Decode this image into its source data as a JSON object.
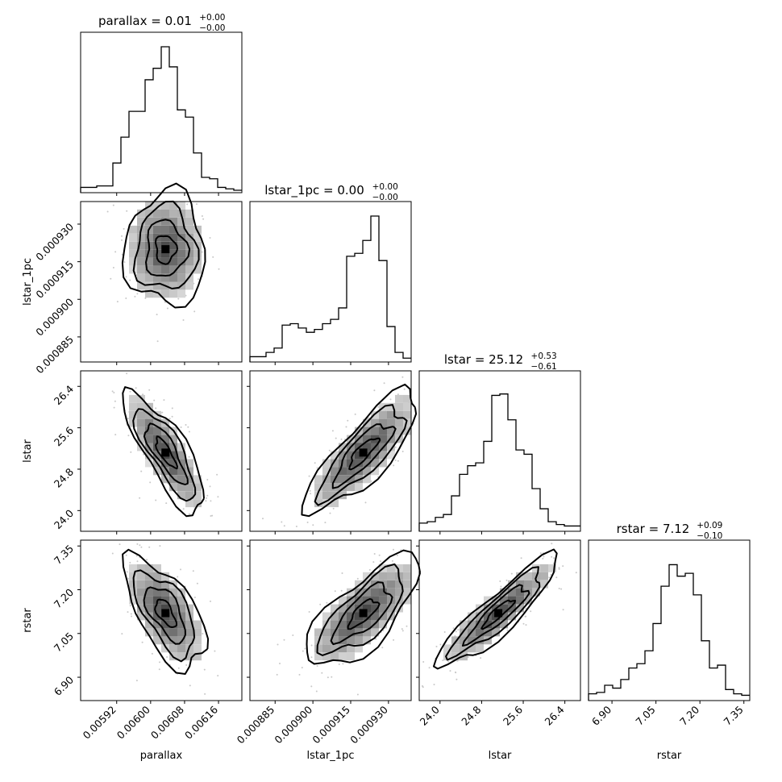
{
  "chart_data": {
    "type": "corner",
    "parameters": [
      "parallax",
      "lstar_1pc",
      "lstar",
      "rstar"
    ],
    "titles": [
      {
        "text": "parallax = 0.01",
        "sup": "+0.00",
        "sub": "−0.00"
      },
      {
        "text": "lstar_1pc = 0.00",
        "sup": "+0.00",
        "sub": "−0.00"
      },
      {
        "text": "lstar = 25.12",
        "sup": "+0.53",
        "sub": "−0.61"
      },
      {
        "text": "rstar = 7.12",
        "sup": "+0.09",
        "sub": "−0.10"
      }
    ],
    "axis_labels": [
      "parallax",
      "lstar_1pc",
      "lstar",
      "rstar"
    ],
    "ranges": [
      [
        0.005835,
        0.006215
      ],
      [
        0.000875,
        0.000939
      ],
      [
        23.6,
        26.7
      ],
      [
        6.82,
        7.37
      ]
    ],
    "ticks": [
      {
        "values": [
          0.00592,
          0.006,
          0.00608,
          0.00616
        ],
        "labels": [
          "0.00592",
          "0.00600",
          "0.00608",
          "0.00616"
        ]
      },
      {
        "values": [
          0.000885,
          0.0009,
          0.000915,
          0.00093
        ],
        "labels": [
          "0.000885",
          "0.000900",
          "0.000915",
          "0.000930"
        ]
      },
      {
        "values": [
          24.0,
          24.8,
          25.6,
          26.4
        ],
        "labels": [
          "24.0",
          "24.8",
          "25.6",
          "26.4"
        ]
      },
      {
        "values": [
          6.9,
          7.05,
          7.2,
          7.35
        ],
        "labels": [
          "6.90",
          "7.05",
          "7.20",
          "7.35"
        ]
      }
    ],
    "histograms": [
      [
        0.02,
        0.02,
        0.03,
        0.03,
        0.19,
        0.37,
        0.55,
        0.55,
        0.77,
        0.85,
        1.0,
        0.86,
        0.56,
        0.51,
        0.26,
        0.09,
        0.08,
        0.02,
        0.01,
        0.0
      ],
      [
        0.02,
        0.02,
        0.05,
        0.08,
        0.24,
        0.25,
        0.22,
        0.19,
        0.21,
        0.25,
        0.28,
        0.36,
        0.72,
        0.74,
        0.83,
        1.0,
        0.69,
        0.23,
        0.05,
        0.01
      ],
      [
        0.04,
        0.05,
        0.08,
        0.1,
        0.23,
        0.38,
        0.44,
        0.46,
        0.61,
        0.93,
        0.94,
        0.76,
        0.55,
        0.52,
        0.28,
        0.14,
        0.05,
        0.03,
        0.02,
        0.02
      ],
      [
        0.03,
        0.04,
        0.09,
        0.07,
        0.13,
        0.21,
        0.24,
        0.33,
        0.52,
        0.78,
        0.93,
        0.85,
        0.87,
        0.72,
        0.4,
        0.21,
        0.23,
        0.06,
        0.03,
        0.02
      ]
    ],
    "modes": {
      "parallax": 0.006035,
      "lstar_1pc": 0.00092,
      "lstar": 25.12,
      "rstar": 7.12
    },
    "correlations": {
      "parallax|lstar_1pc": 0.0,
      "parallax|lstar": -0.8,
      "parallax|rstar": -0.62,
      "lstar_1pc|lstar": 0.82,
      "lstar_1pc|rstar": 0.72,
      "lstar|rstar": 0.9
    },
    "density_color": "#000000",
    "sample_color": "#c8c8c8"
  }
}
